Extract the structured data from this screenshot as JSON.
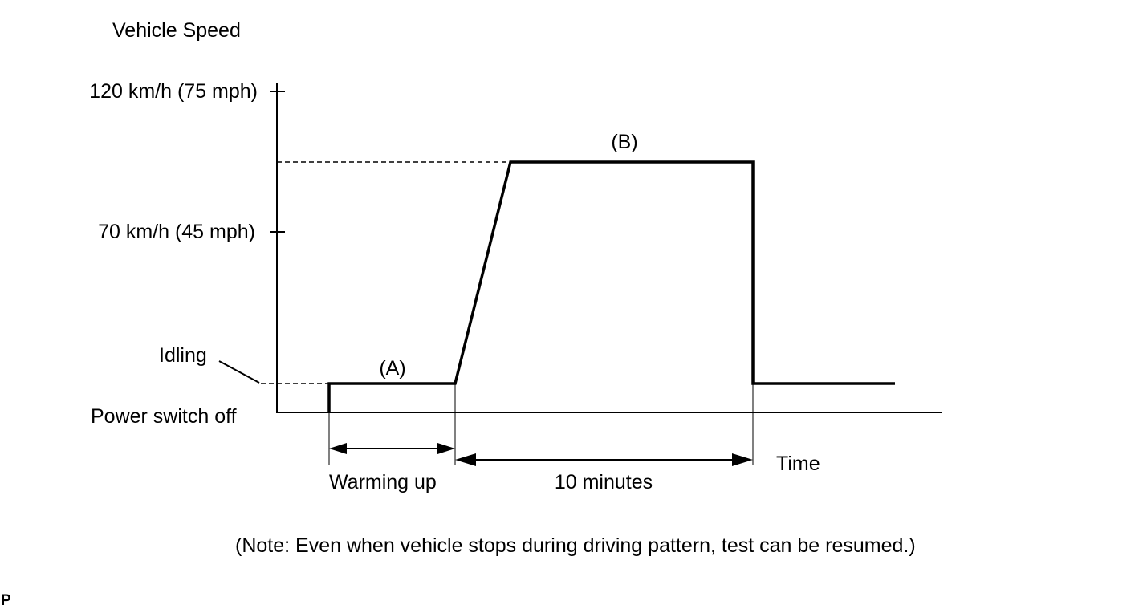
{
  "diagram": {
    "y_axis_title": "Vehicle Speed",
    "y_tick_high": "120 km/h (75 mph)",
    "y_tick_mid": "70 km/h (45 mph)",
    "idling_label": "Idling",
    "power_off_label": "Power switch off",
    "phase_a_label": "(A)",
    "phase_b_label": "(B)",
    "warming_label": "Warming up",
    "duration_label": "10 minutes",
    "x_axis_title": "Time",
    "note": "(Note: Even when vehicle stops during driving pattern, test can be resumed.)",
    "corner_mark": "P"
  }
}
